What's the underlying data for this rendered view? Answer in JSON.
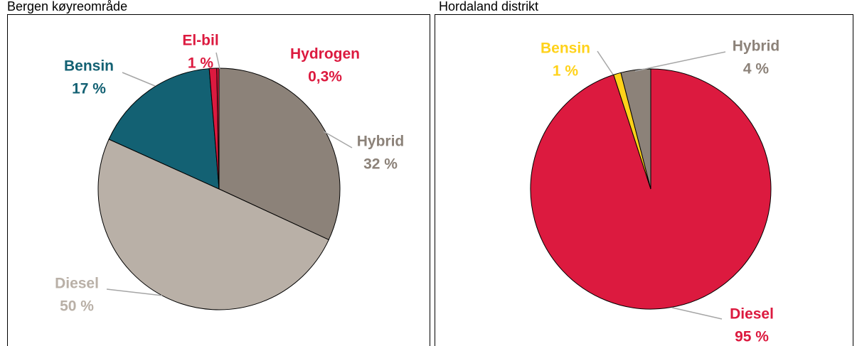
{
  "chart_data": [
    {
      "type": "pie",
      "title": "Bergen køyreområde",
      "categories": [
        "Hybrid",
        "Diesel",
        "Bensin",
        "El-bil",
        "Hydrogen"
      ],
      "values": [
        32,
        50,
        17,
        1,
        0.3
      ],
      "value_labels": [
        "32 %",
        "50 %",
        "17 %",
        "1 %",
        "0,3%"
      ],
      "colors": [
        "#8c8279",
        "#b9b0a7",
        "#136173",
        "#dc1a3f",
        "#dc1a3f"
      ]
    },
    {
      "type": "pie",
      "title": "Hordaland distrikt",
      "categories": [
        "Diesel",
        "Bensin",
        "Hybrid"
      ],
      "values": [
        95,
        1,
        4
      ],
      "value_labels": [
        "95 %",
        "1 %",
        "4 %"
      ],
      "colors": [
        "#dc1a3f",
        "#ffd21a",
        "#8c8279"
      ]
    }
  ]
}
